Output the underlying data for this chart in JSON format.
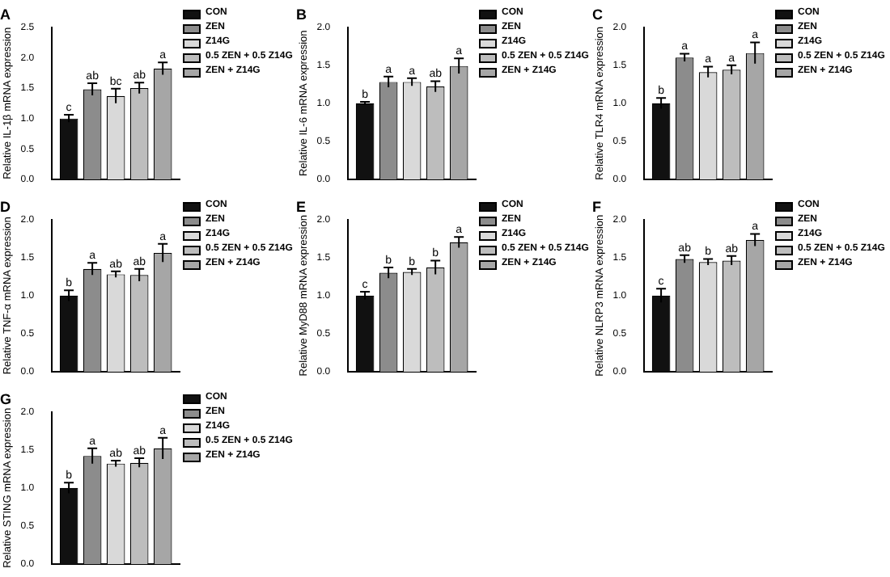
{
  "chart_data": [
    {
      "type": "bar",
      "title": "A",
      "ylabel": "Relative IL-1β mRNA expression",
      "categories": [
        null
      ],
      "ylim": [
        0,
        2.5
      ],
      "yticks": [
        {
          "value": 0,
          "label": "0.0"
        },
        0.5,
        {
          "value": 1,
          "label": "1.0"
        },
        1.5,
        {
          "value": 2,
          "label": "2.0"
        },
        2.5
      ],
      "grid": false,
      "legend": "right",
      "tick_labels": "y",
      "series": [
        {
          "name": "CON",
          "color": "#111111",
          "values": [
            1.0
          ],
          "errors": [
            0.06
          ],
          "value_labels": [
            "c"
          ]
        },
        {
          "name": "ZEN",
          "color": "#8c8c8c",
          "values": [
            1.48
          ],
          "errors": [
            0.1
          ],
          "value_labels": [
            "ab"
          ]
        },
        {
          "name": "Z14G",
          "color": "#d9d9d9",
          "values": [
            1.37
          ],
          "errors": [
            0.12
          ],
          "value_labels": [
            "bc"
          ]
        },
        {
          "name": "0.5 ZEN + 0.5 Z14G",
          "color": "#bdbdbd",
          "values": [
            1.5
          ],
          "errors": [
            0.09
          ],
          "value_labels": [
            "ab"
          ]
        },
        {
          "name": "ZEN + Z14G",
          "color": "#a6a6a6",
          "values": [
            1.82
          ],
          "errors": [
            0.1
          ],
          "value_labels": [
            "a"
          ]
        }
      ]
    },
    {
      "type": "bar",
      "title": "B",
      "ylabel": "Relative IL-6 mRNA expression",
      "categories": [
        null
      ],
      "ylim": [
        0,
        2
      ],
      "yticks": [
        {
          "value": 0,
          "label": "0.0"
        },
        0.5,
        {
          "value": 1,
          "label": "1.0"
        },
        1.5,
        {
          "value": 2,
          "label": "2.0"
        }
      ],
      "grid": false,
      "legend": "right",
      "tick_labels": "y",
      "series": [
        {
          "name": "CON",
          "color": "#111111",
          "values": [
            1.0
          ],
          "errors": [
            0.02
          ],
          "value_labels": [
            "b"
          ]
        },
        {
          "name": "ZEN",
          "color": "#8c8c8c",
          "values": [
            1.28
          ],
          "errors": [
            0.07
          ],
          "value_labels": [
            "a"
          ]
        },
        {
          "name": "Z14G",
          "color": "#d9d9d9",
          "values": [
            1.28
          ],
          "errors": [
            0.05
          ],
          "value_labels": [
            "a"
          ]
        },
        {
          "name": "0.5 ZEN + 0.5 Z14G",
          "color": "#bdbdbd",
          "values": [
            1.22
          ],
          "errors": [
            0.07
          ],
          "value_labels": [
            "ab"
          ]
        },
        {
          "name": "ZEN + Z14G",
          "color": "#a6a6a6",
          "values": [
            1.49
          ],
          "errors": [
            0.1
          ],
          "value_labels": [
            "a"
          ]
        }
      ]
    },
    {
      "type": "bar",
      "title": "C",
      "ylabel": "Relative TLR4 mRNA expression",
      "categories": [
        null
      ],
      "ylim": [
        0,
        2
      ],
      "yticks": [
        {
          "value": 0,
          "label": "0.0"
        },
        0.5,
        {
          "value": 1,
          "label": "1.0"
        },
        1.5,
        {
          "value": 2,
          "label": "2.0"
        }
      ],
      "grid": false,
      "legend": "right",
      "tick_labels": "y",
      "series": [
        {
          "name": "CON",
          "color": "#111111",
          "values": [
            1.0
          ],
          "errors": [
            0.07
          ],
          "value_labels": [
            "b"
          ]
        },
        {
          "name": "ZEN",
          "color": "#8c8c8c",
          "values": [
            1.6
          ],
          "errors": [
            0.05
          ],
          "value_labels": [
            "a"
          ]
        },
        {
          "name": "Z14G",
          "color": "#d9d9d9",
          "values": [
            1.41
          ],
          "errors": [
            0.07
          ],
          "value_labels": [
            "a"
          ]
        },
        {
          "name": "0.5 ZEN + 0.5 Z14G",
          "color": "#bdbdbd",
          "values": [
            1.44
          ],
          "errors": [
            0.06
          ],
          "value_labels": [
            "a"
          ]
        },
        {
          "name": "ZEN + Z14G",
          "color": "#a6a6a6",
          "values": [
            1.66
          ],
          "errors": [
            0.14
          ],
          "value_labels": [
            "a"
          ]
        }
      ]
    },
    {
      "type": "bar",
      "title": "D",
      "ylabel": "Relative TNF-α mRNA expression",
      "categories": [
        null
      ],
      "ylim": [
        0,
        2
      ],
      "yticks": [
        {
          "value": 0,
          "label": "0.0"
        },
        0.5,
        {
          "value": 1,
          "label": "1.0"
        },
        1.5,
        {
          "value": 2,
          "label": "2.0"
        }
      ],
      "grid": false,
      "legend": "right",
      "tick_labels": "y",
      "series": [
        {
          "name": "CON",
          "color": "#111111",
          "values": [
            1.0
          ],
          "errors": [
            0.07
          ],
          "value_labels": [
            "b"
          ]
        },
        {
          "name": "ZEN",
          "color": "#8c8c8c",
          "values": [
            1.35
          ],
          "errors": [
            0.08
          ],
          "value_labels": [
            "a"
          ]
        },
        {
          "name": "Z14G",
          "color": "#d9d9d9",
          "values": [
            1.28
          ],
          "errors": [
            0.04
          ],
          "value_labels": [
            "ab"
          ]
        },
        {
          "name": "0.5 ZEN + 0.5 Z14G",
          "color": "#bdbdbd",
          "values": [
            1.27
          ],
          "errors": [
            0.08
          ],
          "value_labels": [
            "ab"
          ]
        },
        {
          "name": "ZEN + Z14G",
          "color": "#a6a6a6",
          "values": [
            1.56
          ],
          "errors": [
            0.12
          ],
          "value_labels": [
            "a"
          ]
        }
      ]
    },
    {
      "type": "bar",
      "title": "E",
      "ylabel": "Relative MyD88 mRNA expression",
      "categories": [
        null
      ],
      "ylim": [
        0,
        2
      ],
      "yticks": [
        {
          "value": 0,
          "label": "0.0"
        },
        0.5,
        {
          "value": 1,
          "label": "1.0"
        },
        1.5,
        {
          "value": 2,
          "label": "2.0"
        }
      ],
      "grid": false,
      "legend": "right",
      "tick_labels": "y",
      "series": [
        {
          "name": "CON",
          "color": "#111111",
          "values": [
            1.0
          ],
          "errors": [
            0.05
          ],
          "value_labels": [
            "c"
          ]
        },
        {
          "name": "ZEN",
          "color": "#8c8c8c",
          "values": [
            1.3
          ],
          "errors": [
            0.07
          ],
          "value_labels": [
            "b"
          ]
        },
        {
          "name": "Z14G",
          "color": "#d9d9d9",
          "values": [
            1.31
          ],
          "errors": [
            0.04
          ],
          "value_labels": [
            "b"
          ]
        },
        {
          "name": "0.5 ZEN + 0.5 Z14G",
          "color": "#bdbdbd",
          "values": [
            1.37
          ],
          "errors": [
            0.09
          ],
          "value_labels": [
            "b"
          ]
        },
        {
          "name": "ZEN + Z14G",
          "color": "#a6a6a6",
          "values": [
            1.7
          ],
          "errors": [
            0.07
          ],
          "value_labels": [
            "a"
          ]
        }
      ]
    },
    {
      "type": "bar",
      "title": "F",
      "ylabel": "Relative NLRP3 mRNA expression",
      "categories": [
        null
      ],
      "ylim": [
        0,
        2
      ],
      "yticks": [
        {
          "value": 0,
          "label": "0.0"
        },
        0.5,
        {
          "value": 1,
          "label": "1.0"
        },
        1.5,
        {
          "value": 2,
          "label": "2.0"
        }
      ],
      "grid": false,
      "legend": "right",
      "tick_labels": "y",
      "series": [
        {
          "name": "CON",
          "color": "#111111",
          "values": [
            1.0
          ],
          "errors": [
            0.09
          ],
          "value_labels": [
            "c"
          ]
        },
        {
          "name": "ZEN",
          "color": "#8c8c8c",
          "values": [
            1.48
          ],
          "errors": [
            0.05
          ],
          "value_labels": [
            "ab"
          ]
        },
        {
          "name": "Z14G",
          "color": "#d9d9d9",
          "values": [
            1.44
          ],
          "errors": [
            0.04
          ],
          "value_labels": [
            "b"
          ]
        },
        {
          "name": "0.5 ZEN + 0.5 Z14G",
          "color": "#bdbdbd",
          "values": [
            1.46
          ],
          "errors": [
            0.06
          ],
          "value_labels": [
            "ab"
          ]
        },
        {
          "name": "ZEN + Z14G",
          "color": "#a6a6a6",
          "values": [
            1.73
          ],
          "errors": [
            0.08
          ],
          "value_labels": [
            "a"
          ]
        }
      ]
    },
    {
      "type": "bar",
      "title": "G",
      "ylabel": "Relative STING mRNA expression",
      "categories": [
        null
      ],
      "ylim": [
        0,
        2
      ],
      "yticks": [
        {
          "value": 0,
          "label": "0.0"
        },
        0.5,
        {
          "value": 1,
          "label": "1.0"
        },
        1.5,
        {
          "value": 2,
          "label": "2.0"
        }
      ],
      "grid": false,
      "legend": "right",
      "tick_labels": "y",
      "series": [
        {
          "name": "CON",
          "color": "#111111",
          "values": [
            1.0
          ],
          "errors": [
            0.07
          ],
          "value_labels": [
            "b"
          ]
        },
        {
          "name": "ZEN",
          "color": "#8c8c8c",
          "values": [
            1.42
          ],
          "errors": [
            0.1
          ],
          "value_labels": [
            "a"
          ]
        },
        {
          "name": "Z14G",
          "color": "#d9d9d9",
          "values": [
            1.32
          ],
          "errors": [
            0.04
          ],
          "value_labels": [
            "ab"
          ]
        },
        {
          "name": "0.5 ZEN + 0.5 Z14G",
          "color": "#bdbdbd",
          "values": [
            1.33
          ],
          "errors": [
            0.06
          ],
          "value_labels": [
            "ab"
          ]
        },
        {
          "name": "ZEN + Z14G",
          "color": "#a6a6a6",
          "values": [
            1.52
          ],
          "errors": [
            0.14
          ],
          "value_labels": [
            "a"
          ]
        }
      ]
    }
  ]
}
